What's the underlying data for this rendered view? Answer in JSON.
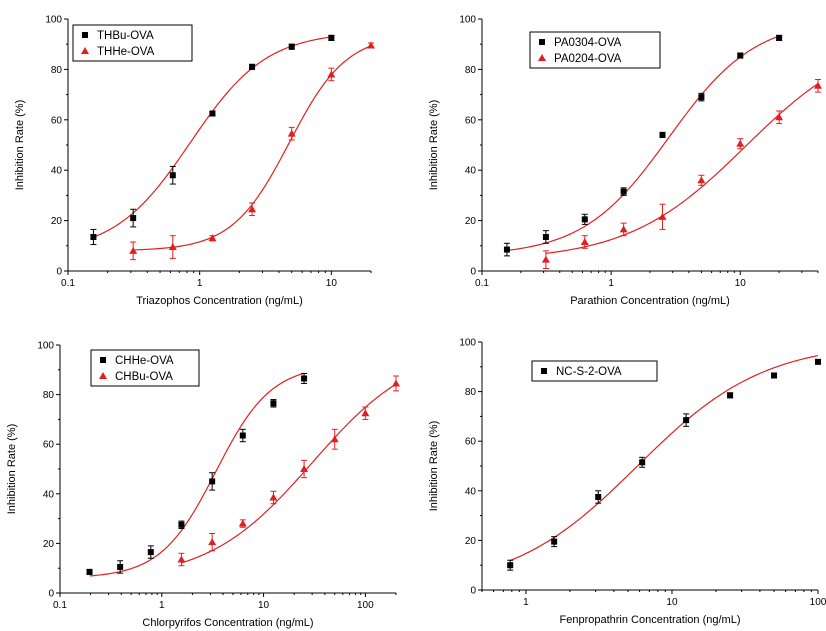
{
  "chart_data": [
    {
      "type": "scatter",
      "xscale": "log",
      "xlim": [
        0.1,
        20
      ],
      "ylim": [
        0,
        100
      ],
      "xticks": [
        0.1,
        1,
        10
      ],
      "xtick_labels": [
        "0.1",
        "1",
        "10"
      ],
      "yticks": [
        0,
        20,
        40,
        60,
        80,
        100
      ],
      "ytick_labels": [
        "0",
        "20",
        "40",
        "60",
        "80",
        "100"
      ],
      "xlabel": "Triazophos Concentration (ng/mL)",
      "ylabel": "Inhibition Rate (%)",
      "legend_position": "top-left",
      "series": [
        {
          "name": "THBu-OVA",
          "marker": "square",
          "color": "#000000",
          "x": [
            0.156,
            0.3125,
            0.625,
            1.25,
            2.5,
            5,
            10
          ],
          "y": [
            13.5,
            21,
            38,
            62.5,
            81,
            89,
            92.5
          ],
          "err": [
            3,
            3.5,
            3.5,
            1,
            1,
            1,
            1
          ],
          "fit": {
            "bottom": 7,
            "top": 95,
            "ic50": 0.85,
            "hill": 1.5
          }
        },
        {
          "name": "THHe-OVA",
          "marker": "triangle",
          "color": "#e02020",
          "x": [
            0.3125,
            0.625,
            1.25,
            2.5,
            5,
            10,
            20
          ],
          "y": [
            8,
            9.5,
            13,
            24.5,
            54.5,
            78,
            89.5
          ],
          "err": [
            3.5,
            4.5,
            1,
            2.5,
            2.5,
            2.5,
            1
          ],
          "fit": {
            "bottom": 8,
            "top": 94,
            "ic50": 4.8,
            "hill": 2.0
          }
        }
      ]
    },
    {
      "type": "scatter",
      "xscale": "log",
      "xlim": [
        0.1,
        40
      ],
      "ylim": [
        0,
        100
      ],
      "xticks": [
        0.1,
        1,
        10
      ],
      "xtick_labels": [
        "0.1",
        "1",
        "10"
      ],
      "yticks": [
        0,
        20,
        40,
        60,
        80,
        100
      ],
      "ytick_labels": [
        "0",
        "20",
        "40",
        "60",
        "80",
        "100"
      ],
      "xlabel": "Parathion Concentration (ng/mL)",
      "ylabel": "Inhibition Rate (%)",
      "legend_position": "top-left",
      "series": [
        {
          "name": "PA0304-OVA",
          "marker": "square",
          "color": "#000000",
          "x": [
            0.156,
            0.3125,
            0.625,
            1.25,
            2.5,
            5,
            10,
            20
          ],
          "y": [
            8.5,
            13.5,
            20.5,
            31.5,
            54,
            69,
            85.5,
            92.5
          ],
          "err": [
            2.5,
            2.5,
            2,
            1.5,
            1,
            1.5,
            1,
            1
          ],
          "fit": {
            "bottom": 6,
            "top": 100,
            "ic50": 2.8,
            "hill": 1.3
          }
        },
        {
          "name": "PA0204-OVA",
          "marker": "triangle",
          "color": "#e02020",
          "x": [
            0.3125,
            0.625,
            1.25,
            2.5,
            5,
            10,
            20,
            40
          ],
          "y": [
            4.5,
            11.5,
            16.5,
            21.5,
            36,
            50.5,
            61,
            73.5
          ],
          "err": [
            3.5,
            2.5,
            2.5,
            5,
            2,
            2,
            2.5,
            2.5
          ],
          "fit": {
            "bottom": 4,
            "top": 95,
            "ic50": 11,
            "hill": 0.95
          }
        }
      ]
    },
    {
      "type": "scatter",
      "xscale": "log",
      "xlim": [
        0.1,
        200
      ],
      "ylim": [
        0,
        100
      ],
      "xticks": [
        0.1,
        1,
        10,
        100
      ],
      "xtick_labels": [
        "0.1",
        "1",
        "10",
        "100"
      ],
      "yticks": [
        0,
        20,
        40,
        60,
        80,
        100
      ],
      "ytick_labels": [
        "0",
        "20",
        "40",
        "60",
        "80",
        "100"
      ],
      "xlabel": "Chlorpyrifos Concentration (ng/mL)",
      "ylabel": "Inhibition Rate (%)",
      "legend_position": "top-left",
      "series": [
        {
          "name": "CHHe-OVA",
          "marker": "square",
          "color": "#000000",
          "x": [
            0.195,
            0.39,
            0.78,
            1.56,
            3.125,
            6.25,
            12.5,
            25
          ],
          "y": [
            8.5,
            10.5,
            16.5,
            27.5,
            45,
            63.5,
            76.5,
            86.5
          ],
          "err": [
            1,
            2.5,
            2.5,
            1.5,
            3.5,
            2.5,
            1.5,
            2
          ],
          "fit": {
            "bottom": 6,
            "top": 92,
            "ic50": 3.4,
            "hill": 1.6
          }
        },
        {
          "name": "CHBu-OVA",
          "marker": "triangle",
          "color": "#e02020",
          "x": [
            1.56,
            3.125,
            6.25,
            12.5,
            25,
            50,
            100,
            200
          ],
          "y": [
            13.5,
            20.5,
            28,
            38.5,
            50,
            62,
            72.5,
            84.5
          ],
          "err": [
            2.5,
            3.5,
            1.5,
            2.5,
            3.5,
            4,
            2.5,
            3
          ],
          "fit": {
            "bottom": 5,
            "top": 100,
            "ic50": 30,
            "hill": 0.85
          }
        }
      ]
    },
    {
      "type": "scatter",
      "xscale": "log",
      "xlim": [
        0.5,
        100
      ],
      "ylim": [
        0,
        100
      ],
      "xticks": [
        1,
        10,
        100
      ],
      "xtick_labels": [
        "1",
        "10",
        "100"
      ],
      "yticks": [
        0,
        20,
        40,
        60,
        80,
        100
      ],
      "ytick_labels": [
        "0",
        "20",
        "40",
        "60",
        "80",
        "100"
      ],
      "xlabel": "Fenpropathrin Concentration (ng/mL)",
      "ylabel": "Inhibition Rate (%)",
      "legend_position": "top-left",
      "series": [
        {
          "name": "NC-S-2-OVA",
          "marker": "square",
          "color": "#000000",
          "x": [
            0.78,
            1.56,
            3.125,
            6.25,
            12.5,
            25,
            50,
            100
          ],
          "y": [
            10,
            19.5,
            37.5,
            51.5,
            68.5,
            78.5,
            86.5,
            92
          ],
          "err": [
            2,
            2,
            2.5,
            2,
            2.5,
            1,
            1,
            0.8
          ],
          "fit": {
            "bottom": 0,
            "top": 100,
            "ic50": 5.8,
            "hill": 1.0
          }
        }
      ]
    }
  ]
}
